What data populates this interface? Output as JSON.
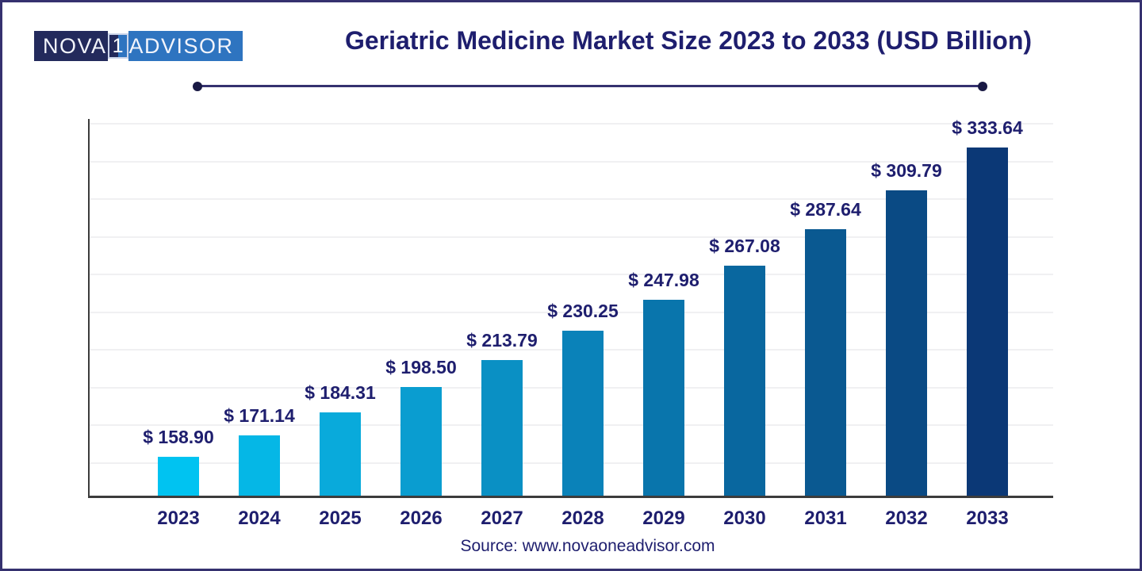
{
  "page": {
    "background": "#ffffff",
    "border_color": "#35316f"
  },
  "logo": {
    "text_left": "NOVA",
    "text_box": "1",
    "text_right": "ADVISOR",
    "left_bg": "#232a5c",
    "right_bg": "#2e74c0",
    "text_color": "#ffffff"
  },
  "header": {
    "title": "Geriatric Medicine Market Size 2023 to 2033 (USD Billion)",
    "title_color": "#1e1e6e",
    "underline_color": "#35316f"
  },
  "chart_data": {
    "type": "bar",
    "title": "Geriatric Medicine Market Size 2023 to 2033 (USD Billion)",
    "categories": [
      "2023",
      "2024",
      "2025",
      "2026",
      "2027",
      "2028",
      "2029",
      "2030",
      "2031",
      "2032",
      "2033"
    ],
    "values": [
      158.9,
      171.14,
      184.31,
      198.5,
      213.79,
      230.25,
      247.98,
      267.08,
      287.64,
      309.79,
      333.64
    ],
    "value_labels": [
      "$ 158.90",
      "$ 171.14",
      "$ 184.31",
      "$ 198.50",
      "$ 213.79",
      "$ 230.25",
      "$ 247.98",
      "$ 267.08",
      "$ 287.64",
      "$ 309.79",
      "$ 333.64"
    ],
    "unit": "USD Billion",
    "bar_colors": [
      "#00c3f1",
      "#05b7e6",
      "#09aadb",
      "#0a9dd0",
      "#0a90c4",
      "#0a82b9",
      "#0975ac",
      "#09679f",
      "#0a5991",
      "#0a4a84",
      "#0b3876"
    ],
    "label_color": "#1f2a6e",
    "axis_color": "#3c3c3c",
    "grid_color": "#f0f0f2",
    "grid": true,
    "legend": "none",
    "xlabel": "",
    "ylabel": "",
    "y_axis_tick_labels": "none shown",
    "ylim_estimated": [
      137,
      350
    ]
  },
  "footer": {
    "source": "Source: www.novaoneadvisor.com",
    "color": "#252577"
  }
}
